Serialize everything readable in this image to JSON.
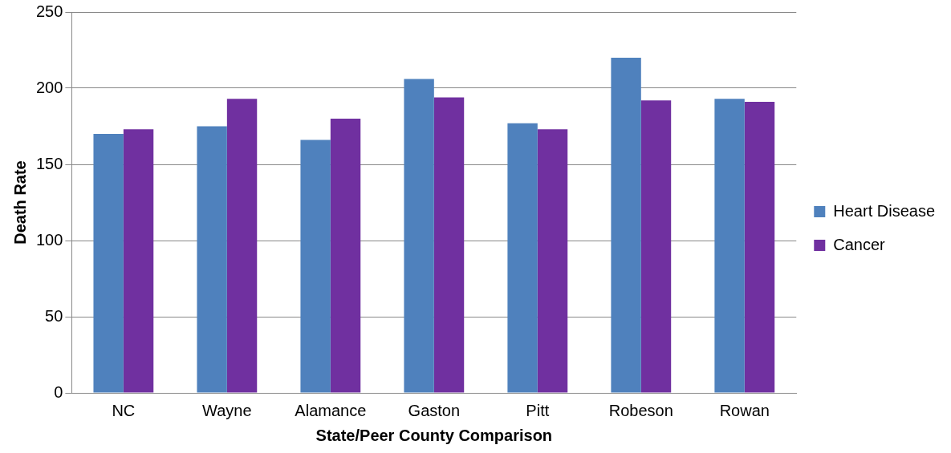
{
  "chart_data": {
    "type": "bar",
    "xlabel": "State/Peer County Comparison",
    "ylabel": "Death Rate",
    "categories": [
      "NC",
      "Wayne",
      "Alamance",
      "Gaston",
      "Pitt",
      "Robeson",
      "Rowan"
    ],
    "series": [
      {
        "name": "Heart Disease",
        "color": "#4f81bd",
        "values": [
          170,
          175,
          166,
          206,
          177,
          220,
          193
        ]
      },
      {
        "name": "Cancer",
        "color": "#7030a0",
        "values": [
          173,
          193,
          180,
          194,
          173,
          192,
          191
        ]
      }
    ],
    "ylim": [
      0,
      250
    ],
    "yticks": [
      0,
      50,
      100,
      150,
      200,
      250
    ],
    "grid": "y",
    "legend": "right"
  }
}
